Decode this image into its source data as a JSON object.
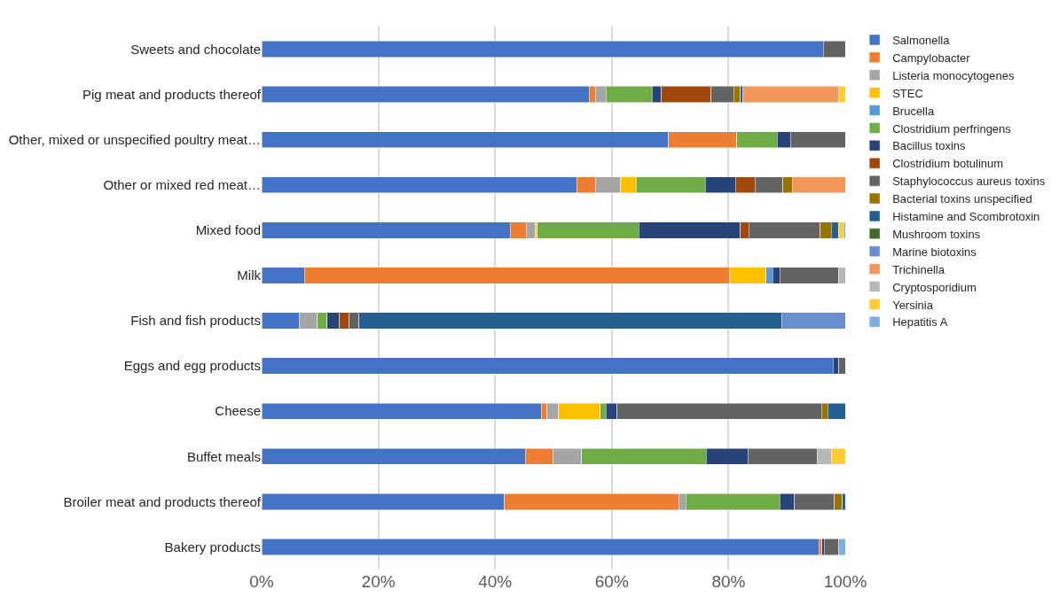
{
  "chart_data": {
    "type": "bar",
    "orientation": "horizontal",
    "stacked": true,
    "categories": [
      "Sweets and chocolate",
      "Pig meat and products thereof",
      "Other, mixed or unspecified poultry meat…",
      "Other or mixed red meat…",
      "Mixed food",
      "Milk",
      "Fish and fish products",
      "Eggs and egg products",
      "Cheese",
      "Buffet meals",
      "Broiler meat and products thereof",
      "Bakery products"
    ],
    "series": [
      {
        "name": "Salmonella",
        "color": "#4472c4",
        "values": [
          96.2,
          56.1,
          69.7,
          54.0,
          42.6,
          7.3,
          6.5,
          97.9,
          47.9,
          45.2,
          41.6,
          95.5
        ]
      },
      {
        "name": "Campylobacter",
        "color": "#ed7d31",
        "values": [
          null,
          1.1,
          11.7,
          3.2,
          2.7,
          72.9,
          null,
          null,
          1.0,
          4.7,
          29.9,
          0.5
        ]
      },
      {
        "name": "Listeria monocytogenes",
        "color": "#a5a5a5",
        "values": [
          null,
          1.8,
          null,
          4.3,
          1.6,
          null,
          3.0,
          null,
          2.0,
          4.9,
          1.2,
          null
        ]
      },
      {
        "name": "STEC",
        "color": "#ffc000",
        "values": [
          null,
          null,
          null,
          2.7,
          0.3,
          6.2,
          null,
          null,
          7.1,
          null,
          null,
          null
        ]
      },
      {
        "name": "Brucella",
        "color": "#5b9bd5",
        "values": [
          null,
          null,
          null,
          null,
          null,
          1.2,
          null,
          null,
          null,
          null,
          null,
          null
        ]
      },
      {
        "name": "Clostridium perfringens",
        "color": "#70ad47",
        "values": [
          null,
          7.9,
          6.9,
          11.8,
          17.4,
          null,
          1.7,
          null,
          1.0,
          21.4,
          16.1,
          null
        ]
      },
      {
        "name": "Bacillus toxins",
        "color": "#264478",
        "values": [
          null,
          1.6,
          2.3,
          5.2,
          17.4,
          1.2,
          2.1,
          1.0,
          1.9,
          7.1,
          2.5,
          0.4
        ]
      },
      {
        "name": "Clostridium botulinum",
        "color": "#9e480e",
        "values": [
          null,
          8.5,
          null,
          3.3,
          1.5,
          null,
          1.7,
          null,
          null,
          null,
          null,
          null
        ]
      },
      {
        "name": "Staphylococcus aureus toxins",
        "color": "#636363",
        "values": [
          3.8,
          3.9,
          9.4,
          4.8,
          12.2,
          10.0,
          1.7,
          1.1,
          35.0,
          11.9,
          6.8,
          2.5
        ]
      },
      {
        "name": "Bacterial toxins unspecified",
        "color": "#997300",
        "values": [
          null,
          1.1,
          null,
          1.6,
          1.9,
          null,
          null,
          null,
          1.1,
          null,
          1.4,
          null
        ]
      },
      {
        "name": "Histamine and Scombrotoxin",
        "color": "#255e91",
        "values": [
          null,
          0.5,
          null,
          null,
          1.2,
          null,
          72.4,
          null,
          3.0,
          null,
          0.5,
          null
        ]
      },
      {
        "name": "Mushroom toxins",
        "color": "#43682b",
        "values": [
          null,
          null,
          null,
          null,
          null,
          null,
          null,
          null,
          null,
          null,
          null,
          null
        ]
      },
      {
        "name": "Marine biotoxins",
        "color": "#698ed0",
        "values": [
          null,
          null,
          null,
          null,
          null,
          null,
          10.9,
          null,
          null,
          null,
          null,
          null
        ]
      },
      {
        "name": "Trichinella",
        "color": "#f1975a",
        "values": [
          null,
          16.4,
          null,
          9.1,
          null,
          null,
          null,
          null,
          null,
          null,
          null,
          null
        ]
      },
      {
        "name": "Cryptosporidium",
        "color": "#b7b7b7",
        "values": [
          null,
          null,
          null,
          null,
          null,
          1.2,
          null,
          null,
          null,
          2.4,
          null,
          null
        ]
      },
      {
        "name": "Yersinia",
        "color": "#ffcd33",
        "values": [
          null,
          1.1,
          null,
          null,
          0.9,
          null,
          null,
          null,
          null,
          2.4,
          null,
          null
        ]
      },
      {
        "name": "Hepatitis A",
        "color": "#7cafdd",
        "values": [
          null,
          null,
          null,
          null,
          0.3,
          null,
          null,
          null,
          null,
          null,
          null,
          1.1
        ]
      }
    ],
    "xlim": [
      0,
      100
    ],
    "xticks": [
      {
        "value": 0,
        "label": "0%"
      },
      {
        "value": 20,
        "label": "20%"
      },
      {
        "value": 40,
        "label": "40%"
      },
      {
        "value": 60,
        "label": "60%"
      },
      {
        "value": 80,
        "label": "80%"
      },
      {
        "value": 100,
        "label": "100%"
      }
    ],
    "grid": "x",
    "legend": "right"
  }
}
